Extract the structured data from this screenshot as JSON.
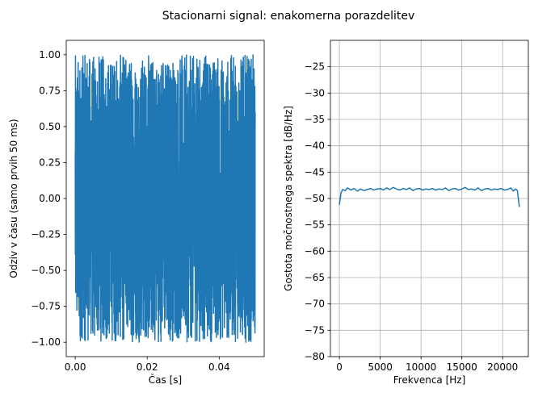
{
  "figure": {
    "suptitle": "Stacionarni signal: enakomerna porazdelitev"
  },
  "chart_data": [
    {
      "type": "line",
      "xlabel": "Čas [s]",
      "ylabel": "Odziv v času (samo prvih 50 ms)",
      "xlim": [
        -0.0025,
        0.0525
      ],
      "ylim": [
        -1.1,
        1.1
      ],
      "xticks": [
        0.0,
        0.02,
        0.04
      ],
      "xtick_labels": [
        "0.00",
        "0.02",
        "0.04"
      ],
      "yticks": [
        -1.0,
        -0.75,
        -0.5,
        -0.25,
        0.0,
        0.25,
        0.5,
        0.75,
        1.0
      ],
      "ytick_labels": [
        "−1.00",
        "−0.75",
        "−0.50",
        "−0.25",
        "0.00",
        "0.25",
        "0.50",
        "0.75",
        "1.00"
      ],
      "grid": false,
      "series": [
        {
          "color": "#1f77b4",
          "description": "uniform white noise in [-1, 1], 44100 Hz sampling, first 50 ms",
          "x_start": 0.0,
          "x_end": 0.05,
          "num_points": 2205,
          "y_min": -1.0,
          "y_max": 1.0
        }
      ]
    },
    {
      "type": "line",
      "xlabel": "Frekvenca [Hz]",
      "ylabel": "Gostota močnostnega spektra [dB/Hz]",
      "xlim": [
        -1100,
        23150
      ],
      "ylim": [
        -80,
        -20
      ],
      "xticks": [
        0,
        5000,
        10000,
        15000,
        20000
      ],
      "xtick_labels": [
        "0",
        "5000",
        "10000",
        "15000",
        "20000"
      ],
      "yticks": [
        -80,
        -75,
        -70,
        -65,
        -60,
        -55,
        -50,
        -45,
        -40,
        -35,
        -30,
        -25
      ],
      "ytick_labels": [
        "−80",
        "−75",
        "−70",
        "−65",
        "−60",
        "−55",
        "−50",
        "−45",
        "−40",
        "−35",
        "−30",
        "−25"
      ],
      "grid": true,
      "series": [
        {
          "color": "#1f77b4",
          "x": [
            0,
            200,
            400,
            700,
            1000,
            1400,
            1800,
            2200,
            2600,
            3000,
            3400,
            3800,
            4200,
            4600,
            5000,
            5400,
            5800,
            6200,
            6600,
            7000,
            7400,
            7800,
            8200,
            8600,
            9000,
            9400,
            9800,
            10200,
            10600,
            11000,
            11400,
            11800,
            12200,
            12600,
            13000,
            13400,
            13800,
            14200,
            14600,
            15000,
            15400,
            15800,
            16200,
            16600,
            17000,
            17400,
            17800,
            18200,
            18600,
            19000,
            19400,
            19800,
            20200,
            20600,
            21000,
            21300,
            21600,
            21800,
            22050
          ],
          "y": [
            -51.2,
            -48.9,
            -48.3,
            -48.5,
            -48.0,
            -48.4,
            -48.1,
            -48.6,
            -48.2,
            -48.5,
            -48.3,
            -48.1,
            -48.4,
            -48.2,
            -48.1,
            -48.4,
            -48.0,
            -48.3,
            -47.9,
            -48.2,
            -48.4,
            -48.1,
            -48.3,
            -48.0,
            -48.5,
            -48.2,
            -48.1,
            -48.4,
            -48.2,
            -48.3,
            -48.1,
            -48.4,
            -48.2,
            -48.3,
            -48.0,
            -48.5,
            -48.2,
            -48.1,
            -48.4,
            -48.2,
            -47.9,
            -48.3,
            -48.2,
            -48.4,
            -48.0,
            -48.5,
            -48.2,
            -48.1,
            -48.4,
            -48.2,
            -48.3,
            -48.1,
            -48.4,
            -48.3,
            -48.0,
            -48.6,
            -48.2,
            -48.5,
            -51.6
          ]
        }
      ]
    }
  ]
}
